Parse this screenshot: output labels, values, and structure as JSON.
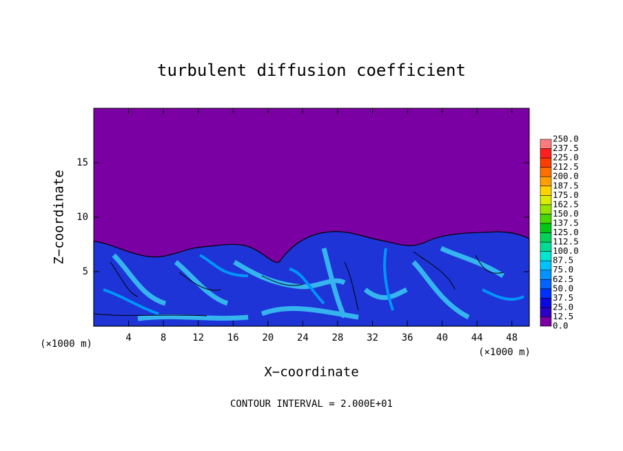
{
  "chart_data": {
    "type": "contour",
    "title": "turbulent diffusion coefficient",
    "x_label": "X−coordinate",
    "y_label": "Z−coordinate",
    "axis_unit": "(×1000 m)",
    "footer": "CONTOUR INTERVAL = 2.000E+01",
    "xlim": [
      0,
      50
    ],
    "ylim": [
      0,
      20
    ],
    "xticks": [
      4,
      8,
      12,
      16,
      20,
      24,
      28,
      32,
      36,
      40,
      44,
      48
    ],
    "yticks": [
      5,
      10,
      15
    ],
    "colorbar": {
      "levels": [
        {
          "value": 0,
          "label": "0.0"
        },
        {
          "value": 12.5,
          "label": "12.5"
        },
        {
          "value": 25,
          "label": "25.0"
        },
        {
          "value": 37.5,
          "label": "37.5"
        },
        {
          "value": 50,
          "label": "50.0"
        },
        {
          "value": 62.5,
          "label": "62.5"
        },
        {
          "value": 75,
          "label": "75.0"
        },
        {
          "value": 87.5,
          "label": "87.5"
        },
        {
          "value": 100,
          "label": "100.0"
        },
        {
          "value": 112.5,
          "label": "112.5"
        },
        {
          "value": 125,
          "label": "125.0"
        },
        {
          "value": 137.5,
          "label": "137.5"
        },
        {
          "value": 150,
          "label": "150.0"
        },
        {
          "value": 162.5,
          "label": "162.5"
        },
        {
          "value": 175,
          "label": "175.0"
        },
        {
          "value": 187.5,
          "label": "187.5"
        },
        {
          "value": 200,
          "label": "200.0"
        },
        {
          "value": 212.5,
          "label": "212.5"
        },
        {
          "value": 225,
          "label": "225.0"
        },
        {
          "value": 237.5,
          "label": "237.5"
        },
        {
          "value": 250,
          "label": "250.0"
        }
      ],
      "colors": [
        "#7a00a6",
        "#2c00c8",
        "#0a0ae0",
        "#0030ff",
        "#0062ff",
        "#0092ff",
        "#00c4ff",
        "#00e6d2",
        "#00dc96",
        "#00d25a",
        "#00c814",
        "#46d800",
        "#96e400",
        "#dcec00",
        "#ffd200",
        "#ffa000",
        "#ff6e00",
        "#ff3c00",
        "#ff1e1e",
        "#ff7c7c"
      ]
    }
  }
}
